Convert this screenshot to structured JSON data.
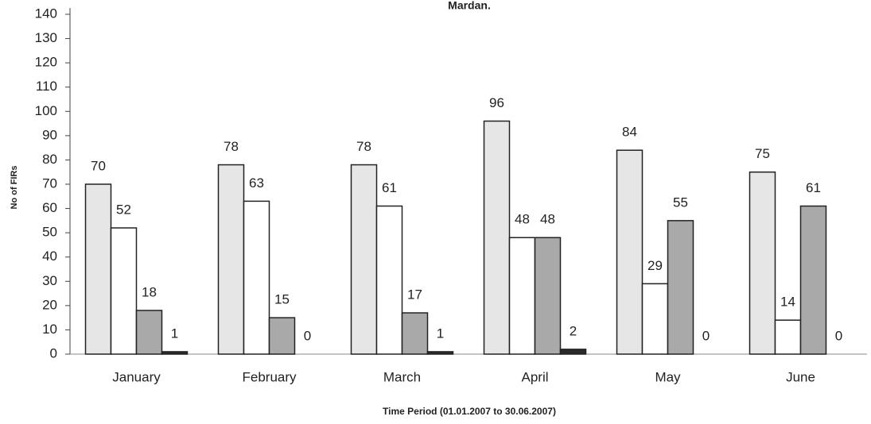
{
  "chart_data": {
    "type": "bar",
    "title": "Mardan.",
    "x_label": "Time Period (01.01.2007 to 30.06.2007)",
    "y_label": "No of FIRs",
    "categories": [
      "January",
      "February",
      "March",
      "April",
      "May",
      "June"
    ],
    "series": [
      {
        "color": "#e6e6e6",
        "values": [
          70,
          78,
          78,
          96,
          84,
          75
        ]
      },
      {
        "color": "#ffffff",
        "values": [
          52,
          63,
          61,
          48,
          29,
          14
        ]
      },
      {
        "color": "#a9a9a9",
        "values": [
          18,
          15,
          17,
          48,
          55,
          61
        ]
      },
      {
        "color": "#2a2a2a",
        "values": [
          1,
          0,
          1,
          2,
          0,
          0
        ]
      }
    ],
    "ylim": [
      0,
      140
    ],
    "yticks": [
      0,
      10,
      20,
      30,
      40,
      50,
      60,
      70,
      80,
      90,
      100,
      110,
      120,
      130,
      140
    ],
    "grid": false
  }
}
